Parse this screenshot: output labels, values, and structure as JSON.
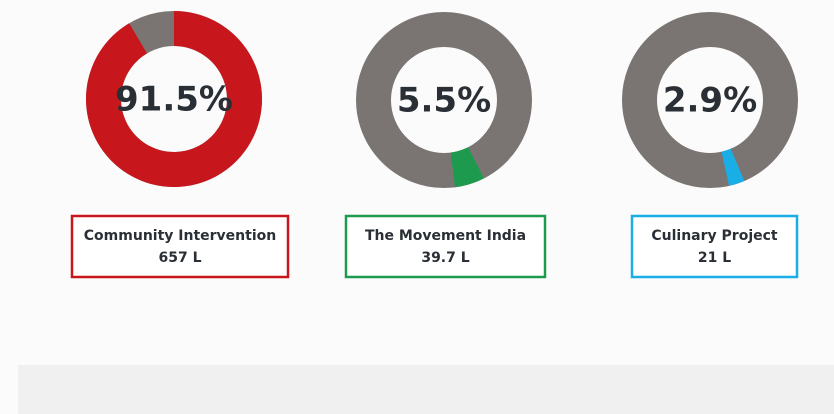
{
  "chart_data": [
    {
      "type": "pie",
      "series": [
        {
          "name": "Community Intervention",
          "color": "#c8171c",
          "values": [
            91.5
          ],
          "value_labels": [
            "91.5%"
          ]
        }
      ],
      "rest_color": "#7a7572",
      "annotation": "657 L"
    },
    {
      "type": "pie",
      "series": [
        {
          "name": "The Movement India",
          "color": "#1e9a4e",
          "values": [
            5.5
          ],
          "value_labels": [
            "5.5%"
          ]
        }
      ],
      "rest_color": "#7a7572",
      "annotation": "39.7 L"
    },
    {
      "type": "pie",
      "series": [
        {
          "name": "Culinary Project",
          "color": "#1aaee6",
          "values": [
            2.9
          ],
          "value_labels": [
            "2.9%"
          ]
        }
      ],
      "rest_color": "#7a7572",
      "annotation": "21 L"
    }
  ]
}
